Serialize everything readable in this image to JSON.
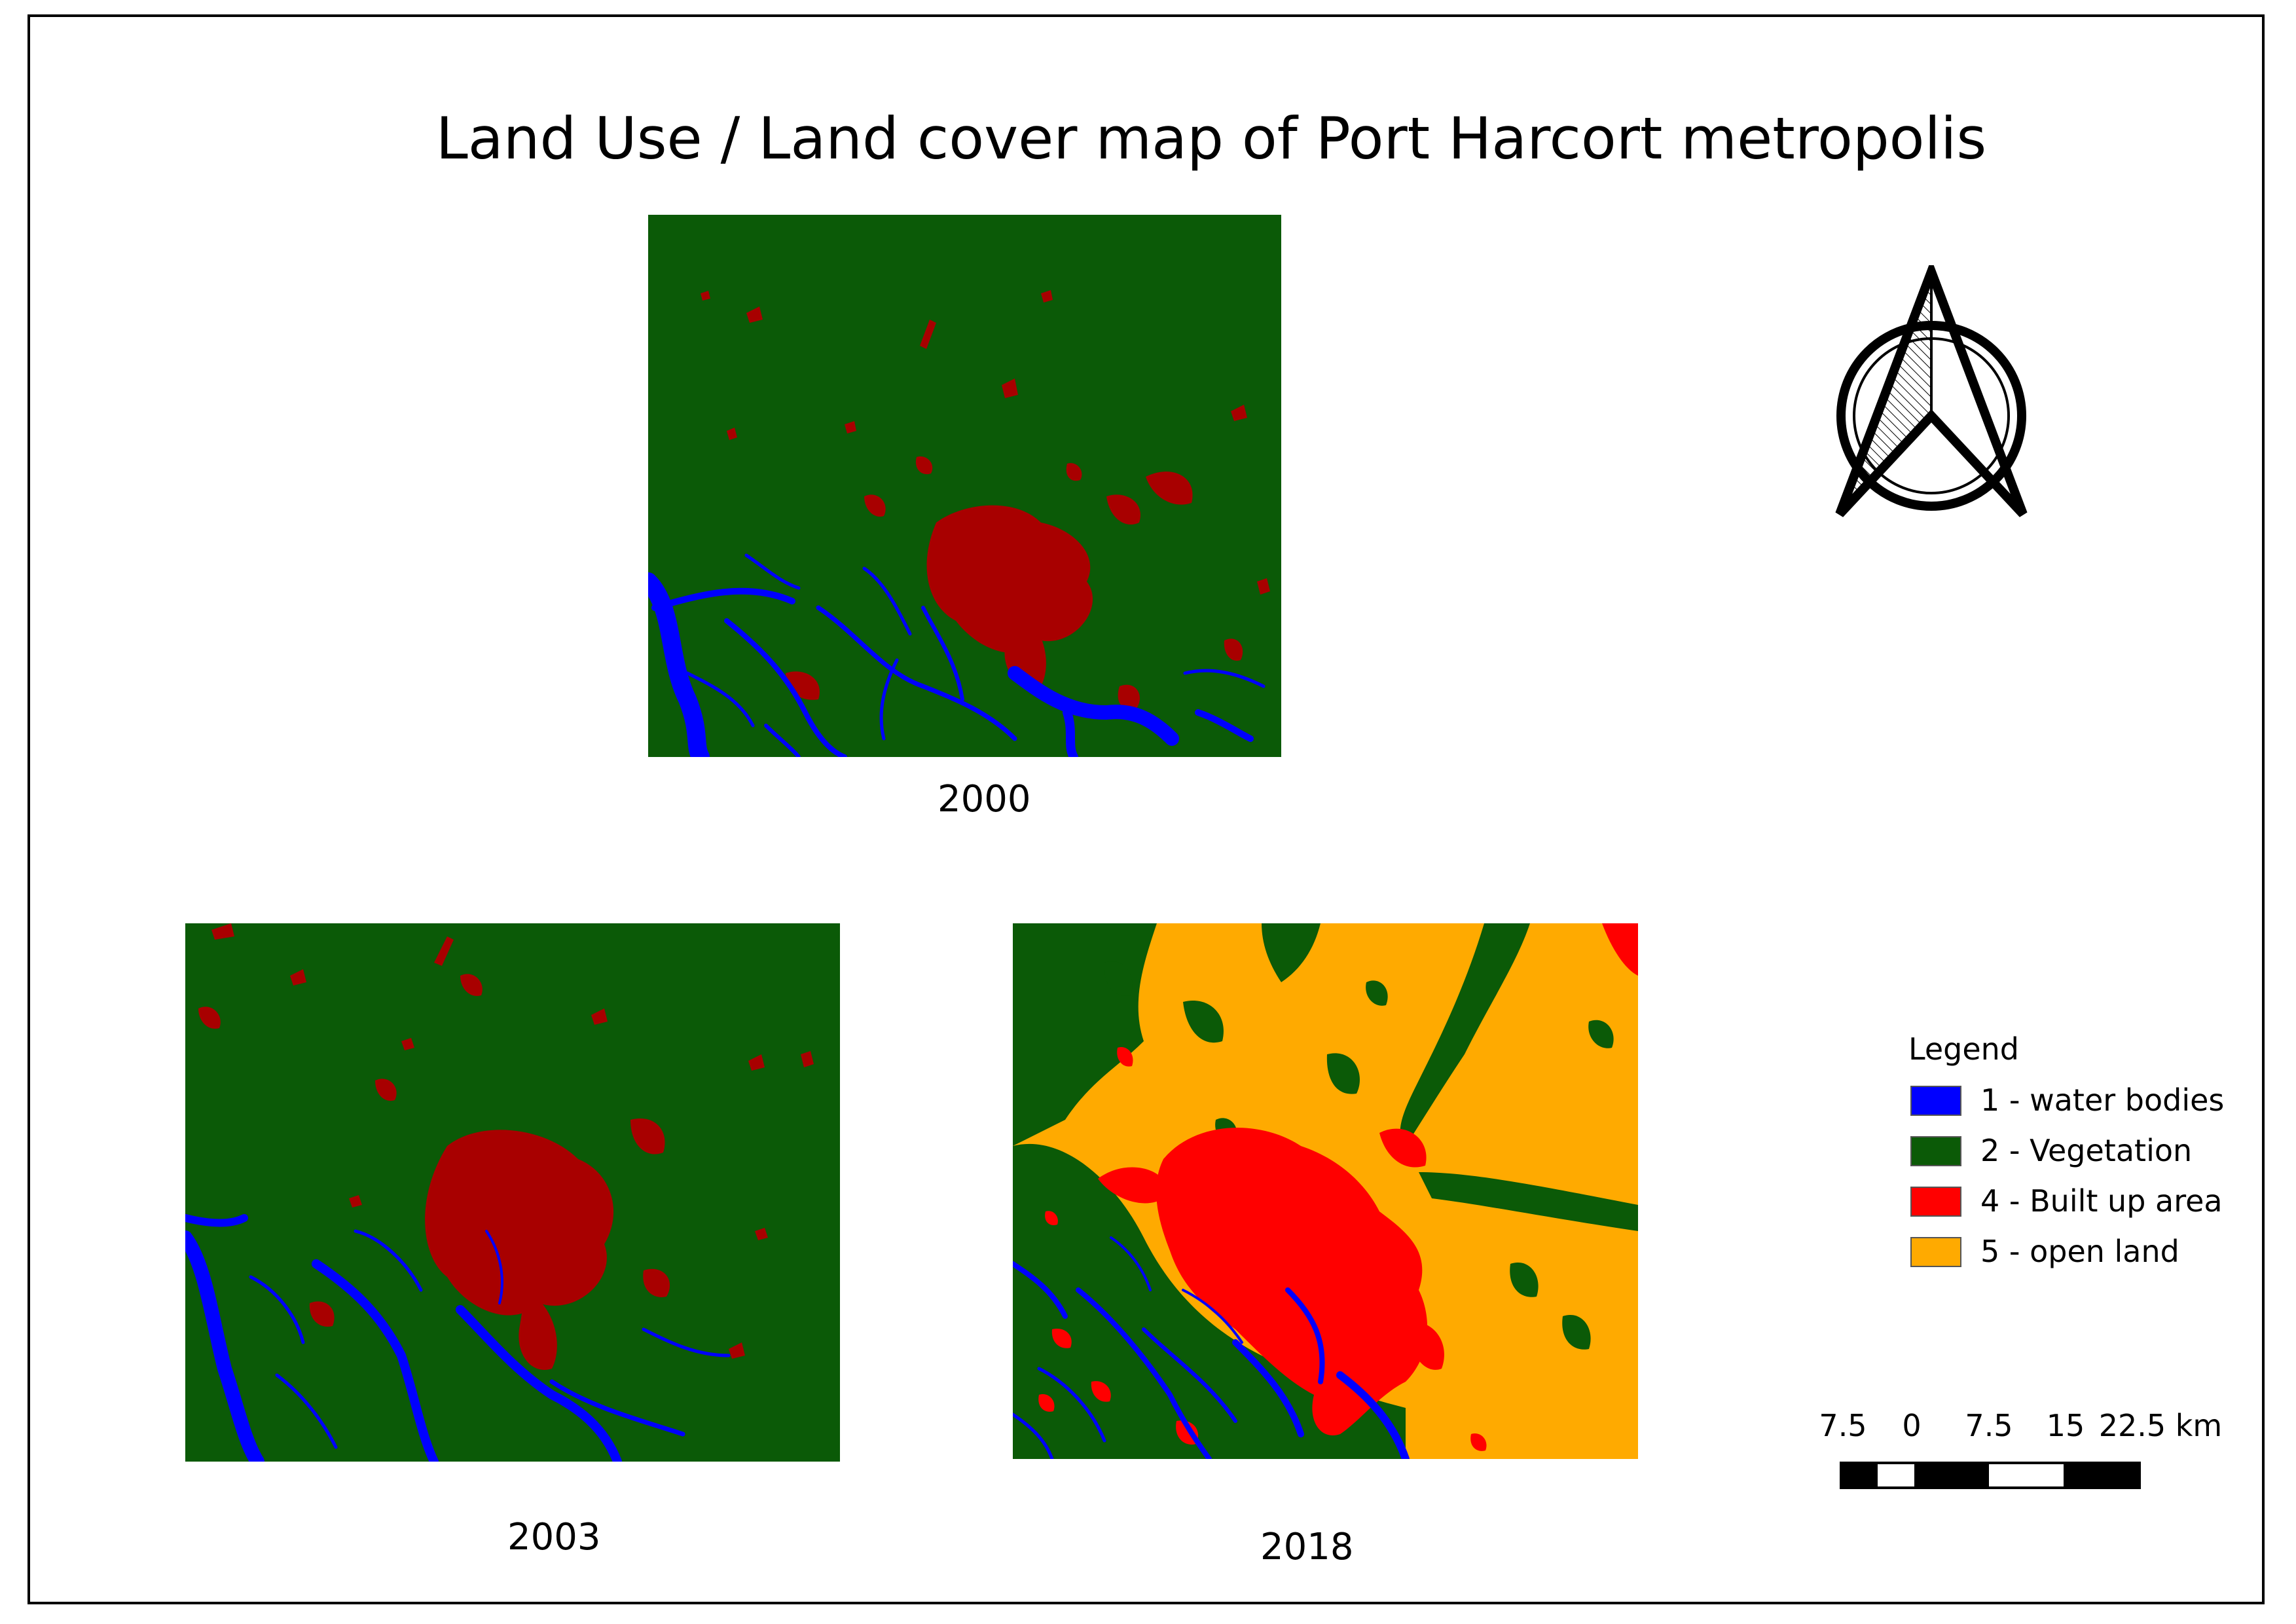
{
  "title": "Land Use / Land cover map of Port Harcort metropolis",
  "maps": [
    {
      "year": "2000"
    },
    {
      "year": "2003"
    },
    {
      "year": "2018"
    }
  ],
  "legend": {
    "title": "Legend",
    "items": [
      {
        "label": "1 - water bodies",
        "color": "#0000ff"
      },
      {
        "label": "2 - Vegetation",
        "color": "#0b5a07"
      },
      {
        "label": "4 - Built up area",
        "color": "#ff0000"
      },
      {
        "label": "5 - open land",
        "color": "#ffaa00"
      }
    ]
  },
  "scalebar": {
    "labels": [
      "7.5",
      "0",
      "7.5",
      "15",
      "22.5 km"
    ]
  },
  "colors": {
    "water": "#0000ff",
    "vegetation": "#0b5a07",
    "builtup_early": "#a80000",
    "builtup_2018": "#ff0000",
    "openland": "#ffaa00"
  },
  "north_arrow": {
    "icon": "north-arrow-icon"
  }
}
